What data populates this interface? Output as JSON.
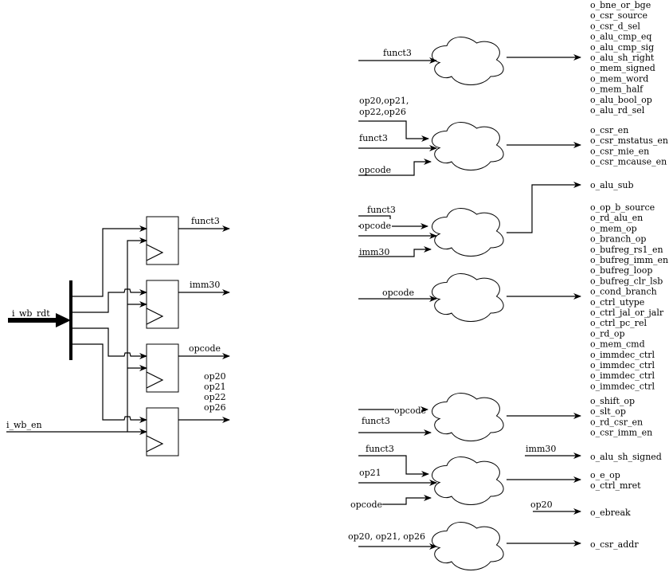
{
  "registers": {
    "input_bus": "i_wb_rdt",
    "enable": "i_wb_en",
    "outputs": [
      "funct3",
      "imm30",
      "opcode"
    ],
    "op_bits": [
      "op20",
      "op21",
      "op22",
      "op26"
    ]
  },
  "decoders": [
    {
      "inputs": [
        "funct3"
      ],
      "outputs": [
        "o_bne_or_bge",
        "o_csr_source",
        "o_csr_d_sel",
        "o_alu_cmp_eq",
        "o_alu_cmp_sig",
        "o_alu_sh_right",
        "o_mem_signed",
        "o_mem_word",
        "o_mem_half",
        "o_alu_bool_op",
        "o_alu_rd_sel"
      ]
    },
    {
      "inputs": [
        "op20,op21,",
        "op22,op26",
        "funct3",
        "opcode"
      ],
      "outputs": [
        "o_csr_en",
        "o_csr_mstatus_en",
        "o_csr_mie_en",
        "o_csr_mcause_en"
      ]
    },
    {
      "inputs": [
        "funct3",
        "opcode",
        "imm30"
      ],
      "outputs": [
        "o_alu_sub"
      ]
    },
    {
      "inputs": [
        "opcode"
      ],
      "outputs": [
        "o_op_b_source",
        "o_rd_alu_en",
        "o_mem_op",
        "o_branch_op",
        "o_bufreg_rs1_en",
        "o_bufreg_imm_en",
        "o_bufreg_loop",
        "o_bufreg_clr_lsb",
        "o_cond_branch",
        "o_ctrl_utype",
        "o_ctrl_jal_or_jalr",
        "o_ctrl_pc_rel",
        "o_rd_op",
        "o_mem_cmd",
        "o_immdec_ctrl",
        "o_immdec_ctrl",
        "o_immdec_ctrl",
        "o_immdec_ctrl"
      ]
    },
    {
      "inputs": [
        "opcode",
        "funct3"
      ],
      "outputs": [
        "o_shift_op",
        "o_slt_op",
        "o_rd_csr_en",
        "o_csr_imm_en"
      ]
    },
    {
      "inputs": [
        "funct3",
        "op21",
        "opcode"
      ],
      "outputs": [
        "o_e_op",
        "o_ctrl_mret"
      ]
    },
    {
      "inputs": [
        "op20, op21, op26"
      ],
      "outputs": [
        "o_csr_addr"
      ]
    }
  ],
  "direct": [
    {
      "input": "imm30",
      "output": "o_alu_sh_signed"
    },
    {
      "input": "op20",
      "output": "o_ebreak"
    }
  ]
}
